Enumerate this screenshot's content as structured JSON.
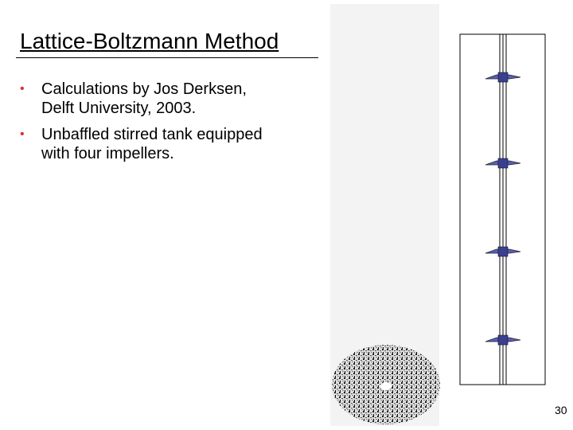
{
  "slide": {
    "title": "Lattice-Boltzmann Method",
    "bullets": [
      [
        "Calculations by Jos Derksen,",
        "Delft University, 2003."
      ],
      [
        "Unbaffled stirred tank equipped",
        "with four impellers."
      ]
    ],
    "page_number": "30"
  }
}
